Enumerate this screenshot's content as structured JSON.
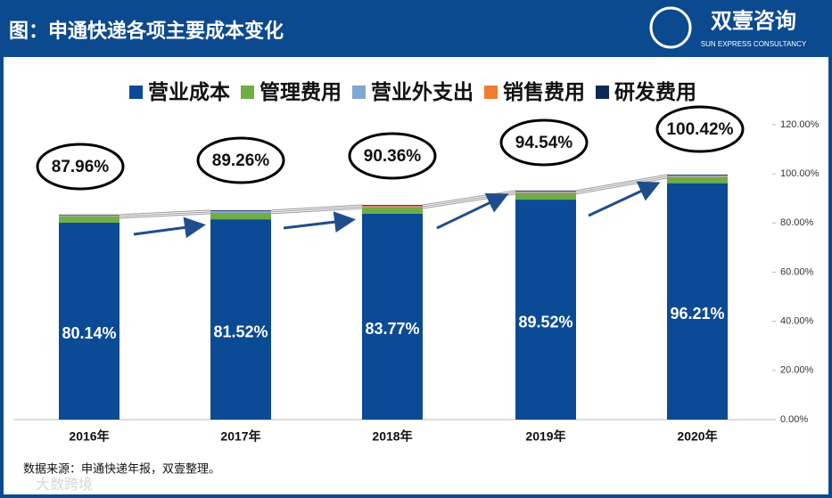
{
  "header": {
    "title": "图：申通快递各项主要成本变化",
    "logo_name": "双壹咨询",
    "logo_sub": "SUN EXPRESS CONSULTANCY"
  },
  "chart_data": {
    "type": "stacked-bar",
    "categories": [
      "2016年",
      "2017年",
      "2018年",
      "2019年",
      "2020年"
    ],
    "series": [
      {
        "name": "营业成本",
        "color": "#0b4a94",
        "values": [
          80.14,
          81.52,
          83.77,
          89.52,
          96.21
        ],
        "value_labels": [
          "80.14%",
          "81.52%",
          "83.77%",
          "89.52%",
          "96.21%"
        ]
      },
      {
        "name": "管理费用",
        "color": "#70ad47",
        "values": [
          2.5,
          2.6,
          2.5,
          2.6,
          2.5
        ]
      },
      {
        "name": "营业外支出",
        "color": "#7fa7d2",
        "values": [
          0.3,
          0.4,
          0.4,
          0.4,
          0.4
        ]
      },
      {
        "name": "销售费用",
        "color": "#ed7d31",
        "values": [
          0.3,
          0.4,
          0.4,
          0.4,
          0.3
        ]
      },
      {
        "name": "研发费用",
        "color": "#0d2a55",
        "values": [
          0.2,
          0.3,
          0.3,
          0.3,
          0.3
        ]
      }
    ],
    "annotations": [
      "87.96%",
      "89.26%",
      "90.36%",
      "94.54%",
      "100.42%"
    ],
    "ylim": [
      0,
      120
    ],
    "yticks": [
      {
        "value": 0,
        "label": "0.00%"
      },
      {
        "value": 20,
        "label": "20.00%"
      },
      {
        "value": 40,
        "label": "40.00%"
      },
      {
        "value": 60,
        "label": "60.00%"
      },
      {
        "value": 80,
        "label": "80.00%"
      },
      {
        "value": 100,
        "label": "100.00%"
      },
      {
        "value": 120,
        "label": "120.00%"
      }
    ],
    "grid": false
  },
  "footer": {
    "source": "数据来源：申通快递年报，双壹整理。",
    "watermark": "大数跨境"
  }
}
